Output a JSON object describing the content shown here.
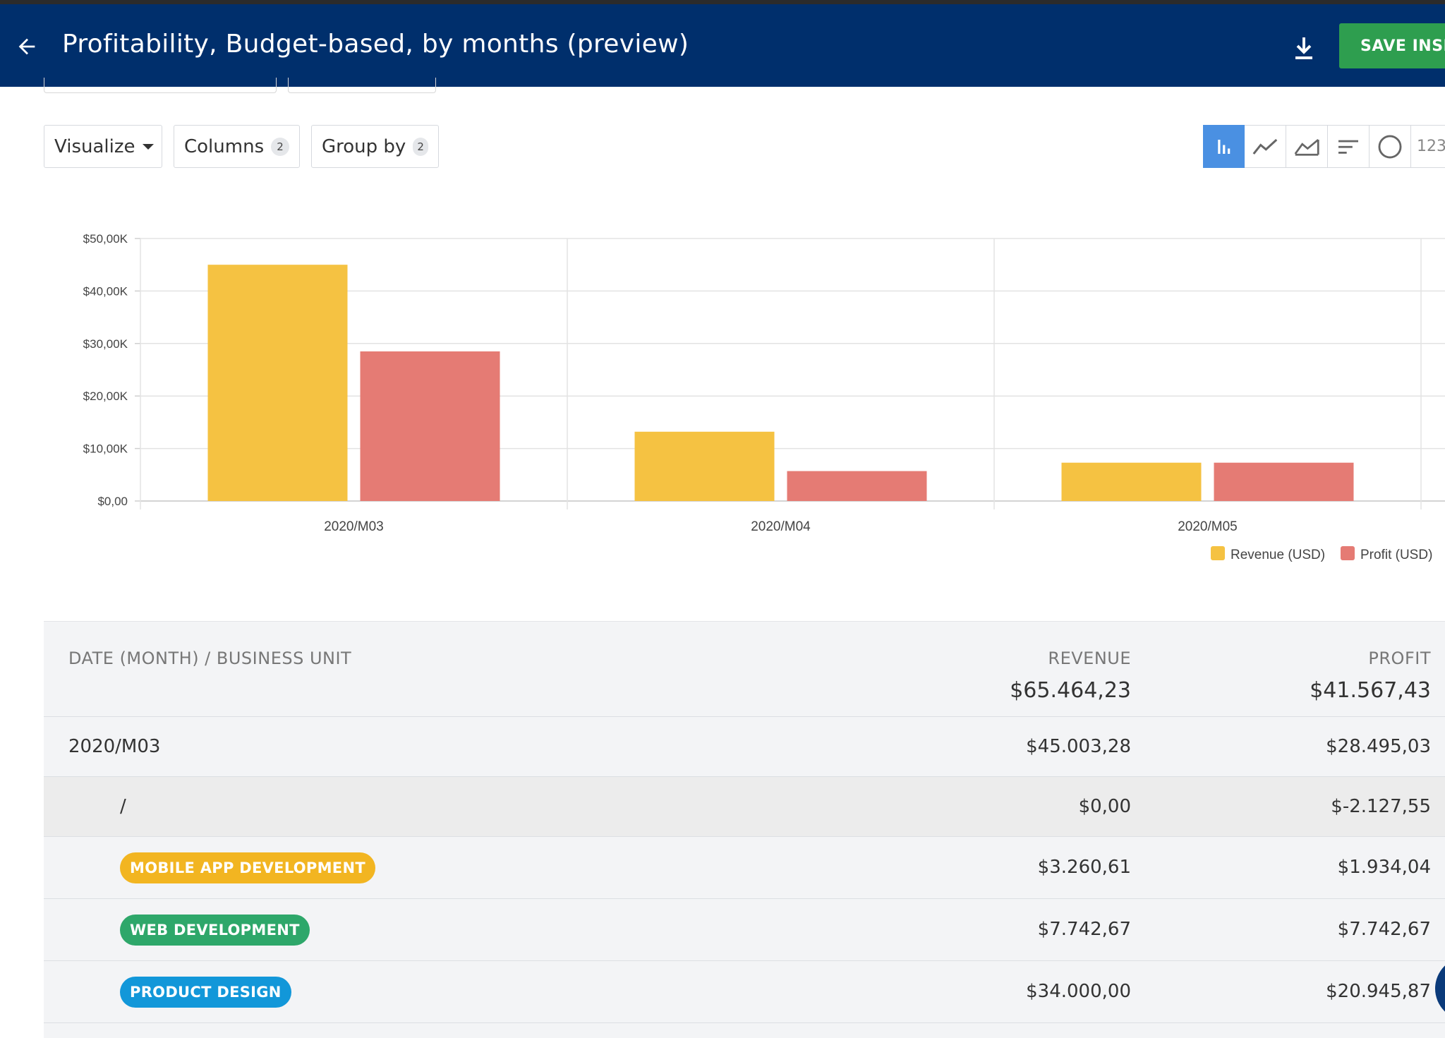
{
  "header": {
    "title": "Profitability, Budget-based, by months (preview)",
    "save_label": "SAVE INSIGHT",
    "background": "#002f6c"
  },
  "icons": {
    "back": "arrow-left-icon",
    "download": "download-icon"
  },
  "toolbar": {
    "visualize_label": "Visualize",
    "columns_label": "Columns",
    "columns_count": "2",
    "groupby_label": "Group by",
    "groupby_count": "2",
    "chart_types": [
      "bar",
      "line",
      "area",
      "sort",
      "pie",
      "123"
    ],
    "active_chart_type": "bar",
    "number_label": "123"
  },
  "chart_data": {
    "type": "bar",
    "categories": [
      "2020/M03",
      "2020/M04",
      "2020/M05"
    ],
    "series": [
      {
        "name": "Revenue (USD)",
        "values": [
          45003.28,
          13200,
          7300
        ],
        "color": "#f5c242"
      },
      {
        "name": "Profit (USD)",
        "values": [
          28495.03,
          5700,
          7300
        ],
        "color": "#e57b74"
      }
    ],
    "ylim": [
      0,
      50000
    ],
    "yticks": [
      "$0,00",
      "$10,00K",
      "$20,00K",
      "$30,00K",
      "$40,00K",
      "$50,00K"
    ],
    "legend": "bottom-right",
    "grid": true
  },
  "table": {
    "col_group": "DATE (MONTH) / BUSINESS UNIT",
    "col_revenue": "REVENUE",
    "col_profit": "PROFIT",
    "total_revenue": "$65.464,23",
    "total_profit": "$41.567,43",
    "rows": [
      {
        "label": "2020/M03",
        "revenue": "$45.003,28",
        "profit": "$28.495,03",
        "level": 0
      },
      {
        "label": "/",
        "revenue": "$0,00",
        "profit": "$-2.127,55",
        "level": 1
      },
      {
        "label": "MOBILE APP DEVELOPMENT",
        "revenue": "$3.260,61",
        "profit": "$1.934,04",
        "level": 1,
        "color": "#f2b521"
      },
      {
        "label": "WEB DEVELOPMENT",
        "revenue": "$7.742,67",
        "profit": "$7.742,67",
        "level": 1,
        "color": "#2ea76a"
      },
      {
        "label": "PRODUCT DESIGN",
        "revenue": "$34.000,00",
        "profit": "$20.945,87",
        "level": 1,
        "color": "#1297d9"
      }
    ]
  }
}
